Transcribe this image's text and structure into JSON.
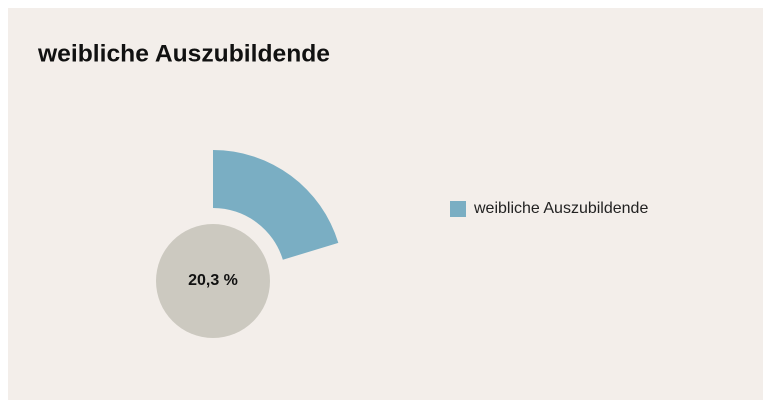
{
  "chart_data": {
    "type": "pie",
    "title": "weibliche Auszubildende",
    "categories": [
      "weibliche Auszubildende"
    ],
    "values": [
      20.3
    ],
    "value_labels": [
      "20,3 %"
    ],
    "ylim": [
      0,
      100
    ],
    "color": "#7aaec3",
    "legend": "right"
  }
}
